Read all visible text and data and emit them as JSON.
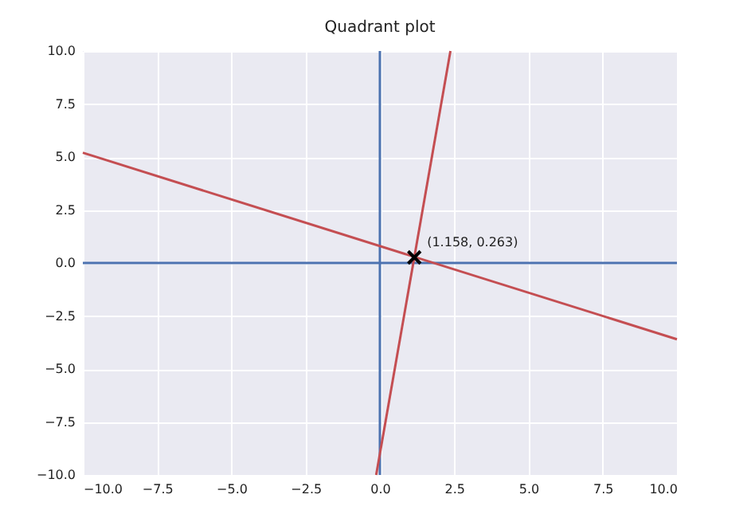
{
  "chart_data": {
    "type": "line",
    "title": "Quadrant plot",
    "xlim": [
      -10,
      10
    ],
    "ylim": [
      -10,
      10
    ],
    "xticks": [
      {
        "value": -10,
        "label": "−10.0"
      },
      {
        "value": -7.5,
        "label": "−7.5"
      },
      {
        "value": -5,
        "label": "−5.0"
      },
      {
        "value": -2.5,
        "label": "−2.5"
      },
      {
        "value": 0,
        "label": "0.0"
      },
      {
        "value": 2.5,
        "label": "2.5"
      },
      {
        "value": 5,
        "label": "5.0"
      },
      {
        "value": 7.5,
        "label": "7.5"
      },
      {
        "value": 10,
        "label": "10.0"
      }
    ],
    "yticks": [
      {
        "value": -10,
        "label": "−10.0"
      },
      {
        "value": -7.5,
        "label": "−7.5"
      },
      {
        "value": -5,
        "label": "−5.0"
      },
      {
        "value": -2.5,
        "label": "−2.5"
      },
      {
        "value": 0,
        "label": "0.0"
      },
      {
        "value": 2.5,
        "label": "2.5"
      },
      {
        "value": 5,
        "label": "5.0"
      },
      {
        "value": 7.5,
        "label": "7.5"
      },
      {
        "value": 10,
        "label": "10.0"
      }
    ],
    "series": [
      {
        "type": "line",
        "color": "#4c72b0",
        "x": [
          -10,
          10
        ],
        "values": [
          0,
          0
        ]
      },
      {
        "type": "line",
        "color": "#4c72b0",
        "x": [
          0,
          0
        ],
        "values": [
          -10,
          10
        ]
      },
      {
        "type": "line",
        "color": "#c44e52",
        "x": [
          -10,
          10
        ],
        "values": [
          5.2,
          -3.6
        ]
      },
      {
        "type": "line",
        "color": "#c44e52",
        "x": [
          -0.125,
          2.375
        ],
        "values": [
          -10,
          10
        ]
      },
      {
        "type": "scatter",
        "color": "#000000",
        "marker": "cross",
        "x": [
          1.158
        ],
        "values": [
          0.263
        ]
      }
    ],
    "annotations": [
      {
        "text": "(1.158, 0.263)",
        "x": 1.158,
        "y": 0.263
      }
    ],
    "grid": true
  }
}
